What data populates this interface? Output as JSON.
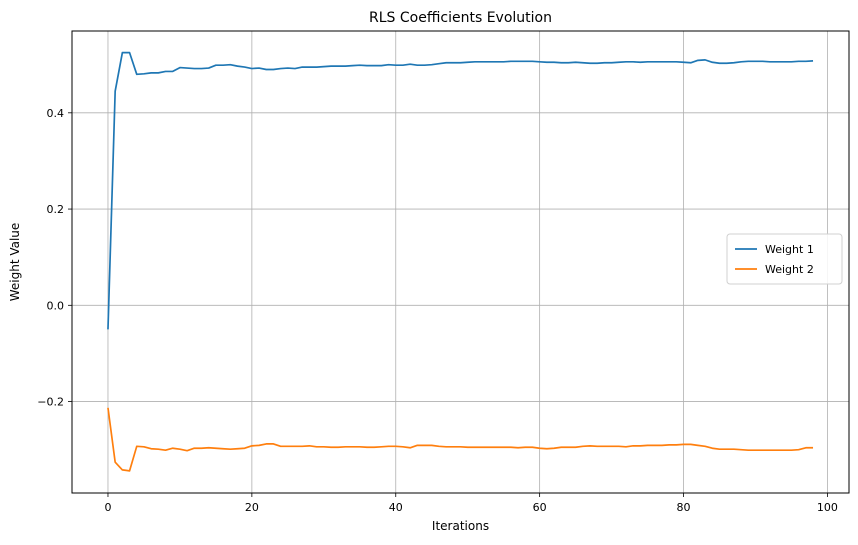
{
  "chart_data": {
    "type": "line",
    "title": "RLS Coefficients Evolution",
    "xlabel": "Iterations",
    "ylabel": "Weight Value",
    "xlim": [
      -5,
      103
    ],
    "ylim": [
      -0.39,
      0.57
    ],
    "xticks": [
      0,
      20,
      40,
      60,
      80,
      100
    ],
    "yticks": [
      -0.2,
      0.0,
      0.2,
      0.4
    ],
    "xtick_labels": [
      "0",
      "20",
      "40",
      "60",
      "80",
      "100"
    ],
    "ytick_labels": [
      "−0.2",
      "0.0",
      "0.2",
      "0.4"
    ],
    "grid": true,
    "legend_position": "center-right",
    "x": [
      0,
      1,
      2,
      3,
      4,
      5,
      6,
      7,
      8,
      9,
      10,
      11,
      12,
      13,
      14,
      15,
      16,
      17,
      18,
      19,
      20,
      21,
      22,
      23,
      24,
      25,
      26,
      27,
      28,
      29,
      30,
      31,
      32,
      33,
      34,
      35,
      36,
      37,
      38,
      39,
      40,
      41,
      42,
      43,
      44,
      45,
      46,
      47,
      48,
      49,
      50,
      51,
      52,
      53,
      54,
      55,
      56,
      57,
      58,
      59,
      60,
      61,
      62,
      63,
      64,
      65,
      66,
      67,
      68,
      69,
      70,
      71,
      72,
      73,
      74,
      75,
      76,
      77,
      78,
      79,
      80,
      81,
      82,
      83,
      84,
      85,
      86,
      87,
      88,
      89,
      90,
      91,
      92,
      93,
      94,
      95,
      96,
      97,
      98
    ],
    "series": [
      {
        "name": "Weight 1",
        "color": "#1f77b4",
        "values": [
          -0.05,
          0.445,
          0.525,
          0.525,
          0.48,
          0.481,
          0.483,
          0.483,
          0.486,
          0.486,
          0.494,
          0.493,
          0.492,
          0.492,
          0.493,
          0.499,
          0.499,
          0.5,
          0.497,
          0.495,
          0.492,
          0.493,
          0.49,
          0.49,
          0.492,
          0.493,
          0.492,
          0.495,
          0.495,
          0.495,
          0.496,
          0.497,
          0.497,
          0.497,
          0.498,
          0.499,
          0.498,
          0.498,
          0.498,
          0.5,
          0.499,
          0.499,
          0.501,
          0.499,
          0.499,
          0.5,
          0.502,
          0.504,
          0.504,
          0.504,
          0.505,
          0.506,
          0.506,
          0.506,
          0.506,
          0.506,
          0.507,
          0.507,
          0.507,
          0.507,
          0.506,
          0.505,
          0.505,
          0.504,
          0.504,
          0.505,
          0.504,
          0.503,
          0.503,
          0.504,
          0.504,
          0.505,
          0.506,
          0.506,
          0.505,
          0.506,
          0.506,
          0.506,
          0.506,
          0.506,
          0.505,
          0.504,
          0.509,
          0.51,
          0.505,
          0.503,
          0.503,
          0.504,
          0.506,
          0.507,
          0.507,
          0.507,
          0.506,
          0.506,
          0.506,
          0.506,
          0.507,
          0.507,
          0.508
        ]
      },
      {
        "name": "Weight 2",
        "color": "#ff7f0e",
        "values": [
          -0.213,
          -0.326,
          -0.342,
          -0.344,
          -0.293,
          -0.294,
          -0.298,
          -0.299,
          -0.301,
          -0.297,
          -0.299,
          -0.302,
          -0.297,
          -0.297,
          -0.296,
          -0.297,
          -0.298,
          -0.299,
          -0.298,
          -0.297,
          -0.292,
          -0.291,
          -0.288,
          -0.288,
          -0.293,
          -0.293,
          -0.293,
          -0.293,
          -0.292,
          -0.294,
          -0.294,
          -0.295,
          -0.295,
          -0.294,
          -0.294,
          -0.294,
          -0.295,
          -0.295,
          -0.294,
          -0.293,
          -0.293,
          -0.294,
          -0.296,
          -0.291,
          -0.291,
          -0.291,
          -0.293,
          -0.294,
          -0.294,
          -0.294,
          -0.295,
          -0.295,
          -0.295,
          -0.295,
          -0.295,
          -0.295,
          -0.295,
          -0.296,
          -0.295,
          -0.295,
          -0.297,
          -0.298,
          -0.297,
          -0.295,
          -0.295,
          -0.295,
          -0.293,
          -0.292,
          -0.293,
          -0.293,
          -0.293,
          -0.293,
          -0.294,
          -0.292,
          -0.292,
          -0.291,
          -0.291,
          -0.291,
          -0.29,
          -0.29,
          -0.289,
          -0.289,
          -0.291,
          -0.293,
          -0.297,
          -0.299,
          -0.299,
          -0.299,
          -0.3,
          -0.301,
          -0.301,
          -0.301,
          -0.301,
          -0.301,
          -0.301,
          -0.301,
          -0.3,
          -0.296,
          -0.296
        ]
      }
    ]
  }
}
